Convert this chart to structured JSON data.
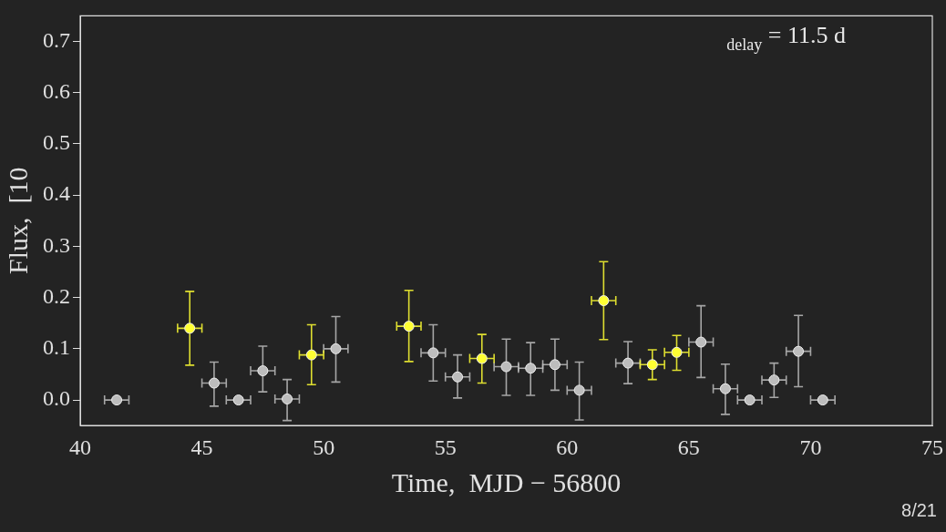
{
  "chart_data": {
    "type": "scatter",
    "xlabel": "Time,  MJD − 56800",
    "ylabel": "Flux,  [10",
    "xlim": [
      40,
      75
    ],
    "xticks": [
      40,
      45,
      50,
      55,
      60,
      65,
      70,
      75
    ],
    "ylim": [
      -0.05,
      0.75
    ],
    "yticks": [
      {
        "value": 0,
        "label": "0.0"
      },
      0.1,
      0.2,
      0.3,
      0.4,
      0.5,
      0.6,
      0.7
    ],
    "marker": "circle",
    "grid": false,
    "legend": false,
    "annotations": [
      "$_{delay}$ = 11.5 d",
      "8/21"
    ],
    "series": [
      {
        "color": "#bdbdbd",
        "x": [
          41.5,
          45.5,
          46.5,
          47.5,
          48.5,
          50.5,
          54.5,
          55.5,
          57.5,
          58.5,
          59.5,
          60.5,
          62.5,
          65.5,
          66.5,
          67.5,
          68.5,
          69.5,
          70.5
        ],
        "values": [
          0.0,
          0.033,
          0.0,
          0.057,
          0.002,
          0.1,
          0.092,
          0.045,
          0.065,
          0.062,
          0.069,
          0.019,
          0.072,
          0.113,
          0.022,
          0.0,
          0.039,
          0.095,
          0.0
        ],
        "errors": [
          null,
          [
            -0.012,
            0.074
          ],
          null,
          [
            0.016,
            0.105
          ],
          [
            -0.04,
            0.04
          ],
          [
            0.035,
            0.163
          ],
          [
            0.037,
            0.147
          ],
          [
            0.004,
            0.088
          ],
          [
            0.009,
            0.119
          ],
          [
            0.009,
            0.112
          ],
          [
            0.019,
            0.119
          ],
          [
            -0.039,
            0.074
          ],
          [
            0.032,
            0.114
          ],
          [
            0.044,
            0.184
          ],
          [
            -0.028,
            0.07
          ],
          null,
          [
            0.005,
            0.072
          ],
          [
            0.026,
            0.165
          ],
          null
        ],
        "xerrors": [
          0.5,
          0.5,
          0.5,
          0.5,
          0.5,
          0.5,
          0.5,
          0.5,
          0.5,
          0.5,
          0.5,
          0.5,
          0.5,
          0.5,
          0.5,
          0.5,
          0.5,
          0.5,
          0.5
        ]
      },
      {
        "color": "#ffff33",
        "x": [
          44.5,
          49.5,
          53.5,
          56.5,
          61.5,
          63.5,
          64.5
        ],
        "values": [
          0.14,
          0.088,
          0.144,
          0.081,
          0.194,
          0.069,
          0.093
        ],
        "errors": [
          [
            0.068,
            0.212
          ],
          [
            0.03,
            0.147
          ],
          [
            0.075,
            0.214
          ],
          [
            0.033,
            0.128
          ],
          [
            0.118,
            0.27
          ],
          [
            0.04,
            0.098
          ],
          [
            0.058,
            0.126
          ]
        ],
        "xerrors": [
          0.5,
          0.5,
          0.5,
          0.5,
          0.5,
          0.5,
          0.5
        ]
      }
    ]
  }
}
